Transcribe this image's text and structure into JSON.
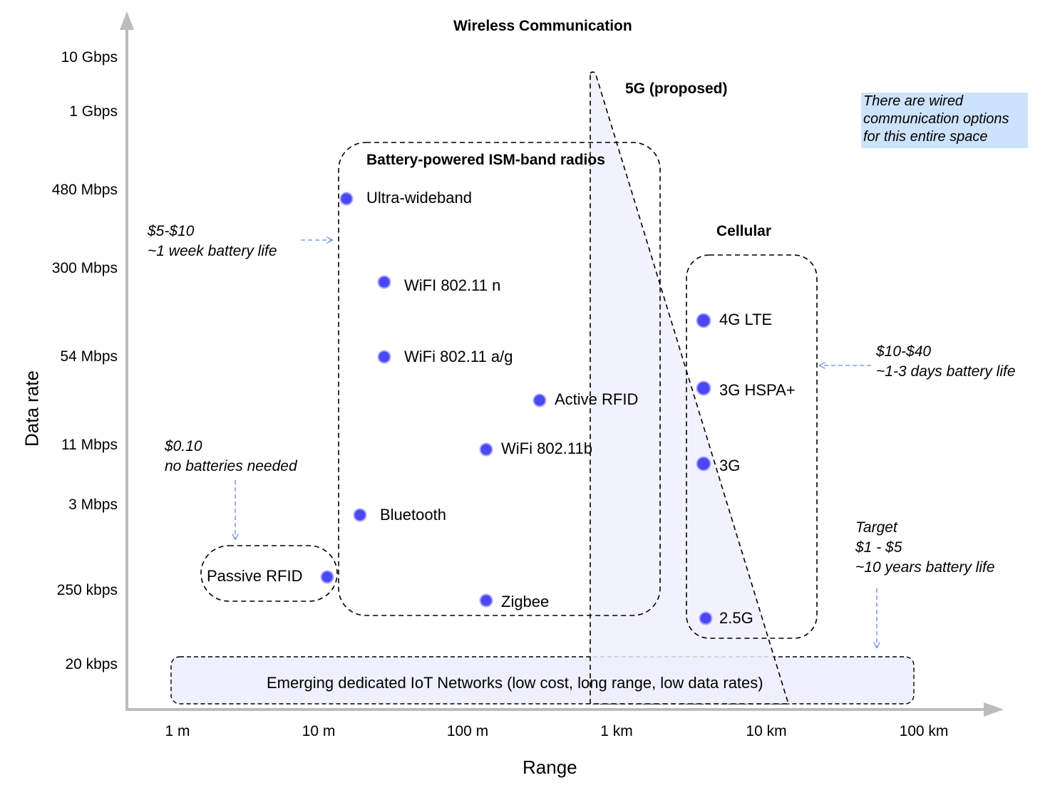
{
  "title": "Wireless Communication",
  "axes": {
    "x_label": "Range",
    "y_label": "Data rate",
    "x_ticks": [
      "1 m",
      "10 m",
      "100 m",
      "1 km",
      "10 km",
      "100 km"
    ],
    "y_ticks": [
      "10 Gbps",
      "1 Gbps",
      "480 Mbps",
      "300 Mbps",
      "54 Mbps",
      "11 Mbps",
      "3 Mbps",
      "250 kbps",
      "20 kbps"
    ]
  },
  "groups": {
    "ism": {
      "label": "Battery-powered ISM-band radios"
    },
    "cellular": {
      "label": "Cellular"
    },
    "fiveg": {
      "label": "5G (proposed)"
    },
    "iot": {
      "label": "Emerging dedicated IoT Networks (low cost, long range, low data rates)"
    },
    "passive": {
      "label": "Passive RFID"
    }
  },
  "technologies": [
    {
      "name": "Ultra-wideband",
      "range": "10 m",
      "rate": "480 Mbps"
    },
    {
      "name": "WiFI 802.11 n",
      "range": "10 m - 100 m",
      "rate": "300 Mbps"
    },
    {
      "name": "WiFi 802.11 a/g",
      "range": "10 m - 100 m",
      "rate": "54 Mbps"
    },
    {
      "name": "Active RFID",
      "range": "100 m - 1 km",
      "rate": "54 Mbps - 11 Mbps"
    },
    {
      "name": "WiFi 802.11b",
      "range": "100 m",
      "rate": "11 Mbps"
    },
    {
      "name": "Bluetooth",
      "range": "10 m",
      "rate": "3 Mbps"
    },
    {
      "name": "Zigbee",
      "range": "100 m",
      "rate": "250 kbps"
    },
    {
      "name": "Passive RFID",
      "range": "10 m",
      "rate": "250 kbps"
    },
    {
      "name": "4G LTE",
      "range": "1 km - 10 km",
      "rate": "300 Mbps - 54 Mbps"
    },
    {
      "name": "3G HSPA+",
      "range": "1 km - 10 km",
      "rate": "54 Mbps - 11 Mbps"
    },
    {
      "name": "3G",
      "range": "1 km - 10 km",
      "rate": "11 Mbps - 3 Mbps"
    },
    {
      "name": "2.5G",
      "range": "1 km - 10 km",
      "rate": "250 kbps - 20 kbps"
    }
  ],
  "notes": {
    "ism_cost": [
      "$5-$10",
      "~1 week battery life"
    ],
    "passive_cost": [
      "$0.10",
      "no batteries needed"
    ],
    "cell_cost": [
      "$10-$40",
      "~1-3 days battery life"
    ],
    "target": [
      "Target",
      "$1 - $5",
      "~10 years battery life"
    ],
    "wired": [
      "There are wired",
      "communication options",
      "for this entire space"
    ]
  },
  "colors": {
    "point": "#4a47f5",
    "region_fill": "#eef0fd",
    "arrow": "#7f9cf0",
    "wired_bg": "#cde3fb",
    "axis": "#bcbcbc"
  }
}
